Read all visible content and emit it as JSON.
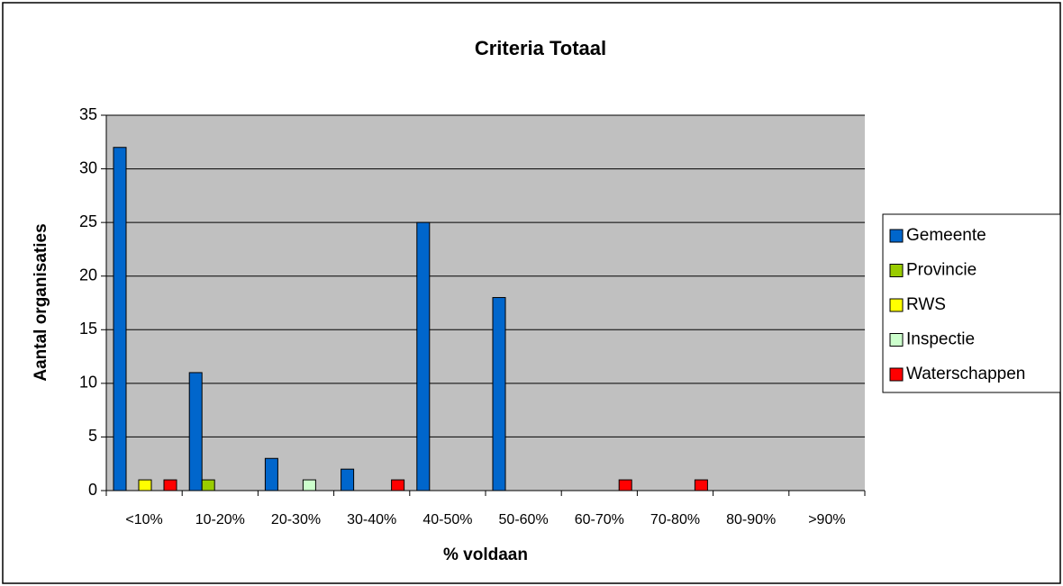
{
  "chart_data": {
    "type": "bar",
    "title": "Criteria Totaal",
    "x_label": "% voldaan",
    "y_label": "Aantal organisaties",
    "categories": [
      "<10%",
      "10-20%",
      "20-30%",
      "30-40%",
      "40-50%",
      "50-60%",
      "60-70%",
      "70-80%",
      "80-90%",
      ">90%"
    ],
    "series": [
      {
        "name": "Gemeente",
        "color": "#0066CC",
        "values": [
          32,
          11,
          3,
          2,
          25,
          18,
          0,
          0,
          0,
          0
        ]
      },
      {
        "name": "Provincie",
        "color": "#99CC00",
        "values": [
          0,
          1,
          0,
          0,
          0,
          0,
          0,
          0,
          0,
          0
        ]
      },
      {
        "name": "RWS",
        "color": "#FFFF00",
        "values": [
          1,
          0,
          0,
          0,
          0,
          0,
          0,
          0,
          0,
          0
        ]
      },
      {
        "name": "Inspectie",
        "color": "#CCFFCC",
        "values": [
          0,
          0,
          1,
          0,
          0,
          0,
          0,
          0,
          0,
          0
        ]
      },
      {
        "name": "Waterschappen",
        "color": "#FF0000",
        "values": [
          1,
          0,
          0,
          1,
          0,
          0,
          1,
          1,
          0,
          0
        ]
      }
    ],
    "ylim": [
      0,
      35
    ],
    "yticks": [
      0,
      5,
      10,
      15,
      20,
      25,
      30,
      35
    ],
    "grid": true,
    "legend": "right"
  }
}
